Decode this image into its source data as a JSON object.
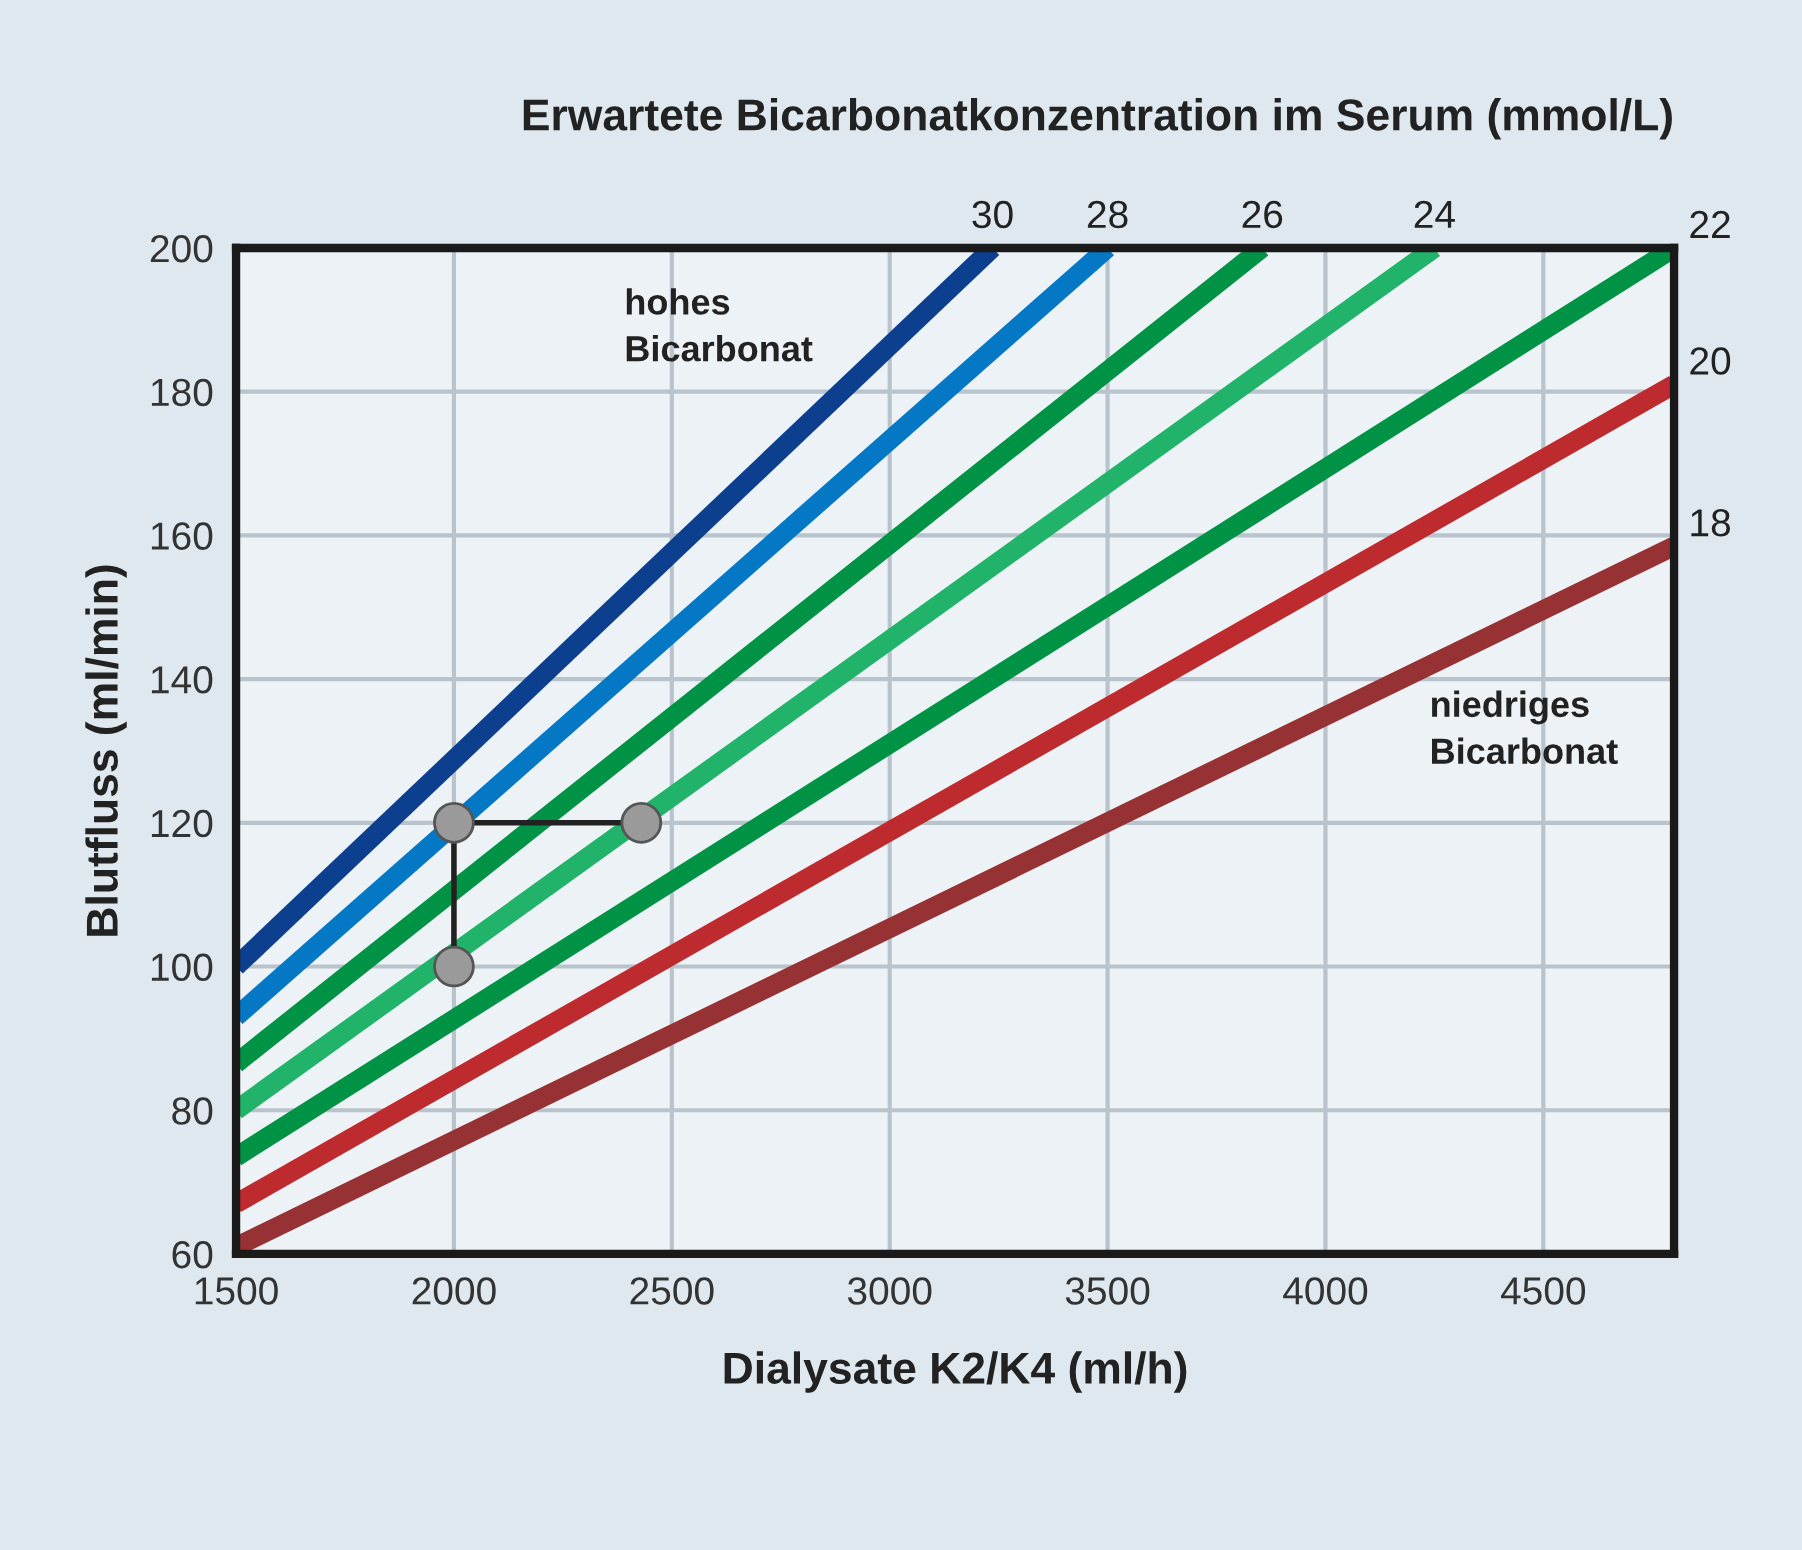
{
  "chart_data": {
    "type": "line",
    "title": "Erwartete Bicarbonatkonzentration im Serum (mmol/L)",
    "xlabel": "Dialysate K2/K4 (ml/h)",
    "ylabel": "Blutfluss (ml/min)",
    "annotations": [
      "hohes\nBicarbonat",
      "niedriges\nBicarbonat"
    ],
    "xlim": [
      1500,
      4800
    ],
    "ylim": [
      60,
      200
    ],
    "xticks": [
      1500,
      2000,
      2500,
      3000,
      3500,
      4000,
      4500
    ],
    "yticks": [
      60,
      80,
      100,
      120,
      140,
      160,
      180,
      200
    ],
    "grid": true,
    "legend": false,
    "series": [
      {
        "name": "30",
        "color": "#0d3f8f",
        "x": [
          1500,
          3236
        ],
        "values": [
          100,
          200
        ]
      },
      {
        "name": "28",
        "color": "#0478c4",
        "x": [
          1500,
          3500
        ],
        "values": [
          93,
          200
        ]
      },
      {
        "name": "26",
        "color": "#009245",
        "x": [
          1500,
          3855
        ],
        "values": [
          86.5,
          200
        ]
      },
      {
        "name": "24",
        "color": "#22b36a",
        "x": [
          1500,
          4250
        ],
        "values": [
          80,
          200
        ]
      },
      {
        "name": "22",
        "color": "#009245",
        "x": [
          1500,
          4800
        ],
        "values": [
          73.5,
          200
        ]
      },
      {
        "name": "20",
        "color": "#be2b2f",
        "x": [
          1500,
          4800
        ],
        "values": [
          67,
          181
        ]
      },
      {
        "name": "18",
        "color": "#973234",
        "x": [
          1500,
          4800
        ],
        "values": [
          61,
          158.5
        ]
      },
      {
        "color": "#222222",
        "marker": "circle",
        "x": [
          2000,
          2000,
          2430
        ],
        "values": [
          100,
          120,
          120
        ]
      }
    ]
  }
}
